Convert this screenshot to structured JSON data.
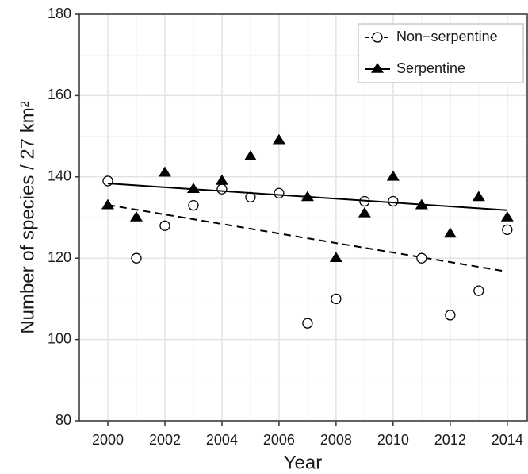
{
  "chart_data": {
    "type": "scatter",
    "x_label": "Year",
    "y_label": "Number of species / 27 km²",
    "x": [
      2000,
      2001,
      2002,
      2003,
      2004,
      2005,
      2006,
      2007,
      2008,
      2009,
      2010,
      2011,
      2012,
      2013,
      2014
    ],
    "series": [
      {
        "name": "Non−serpentine",
        "color": "#000000",
        "marker": "circle",
        "line_style": "dashed",
        "values": [
          139,
          120,
          128,
          133,
          137,
          135,
          136,
          104,
          110,
          134,
          134,
          120,
          106,
          112,
          127
        ],
        "trend_x": [
          2000,
          2014
        ],
        "trend": [
          133.1,
          116.7
        ]
      },
      {
        "name": "Serpentine",
        "color": "#000000",
        "marker": "triangle",
        "line_style": "solid",
        "values": [
          133,
          130,
          141,
          137,
          139,
          145,
          149,
          135,
          120,
          131,
          140,
          133,
          126,
          135,
          130
        ],
        "trend_x": [
          2000,
          2014
        ],
        "trend": [
          138.4,
          131.8
        ]
      }
    ],
    "xlim": [
      1999.0,
      2014.7
    ],
    "ylim": [
      80,
      180
    ],
    "xticks": [
      2000,
      2002,
      2004,
      2006,
      2008,
      2010,
      2012,
      2014
    ],
    "yticks": [
      80,
      100,
      120,
      140,
      160,
      180
    ],
    "x_minor_ticks": [
      1999,
      2001,
      2003,
      2005,
      2007,
      2009,
      2011,
      2013
    ],
    "y_minor_ticks": [
      90,
      110,
      130,
      150,
      170
    ],
    "grid": true,
    "legend_position": "top-right"
  }
}
